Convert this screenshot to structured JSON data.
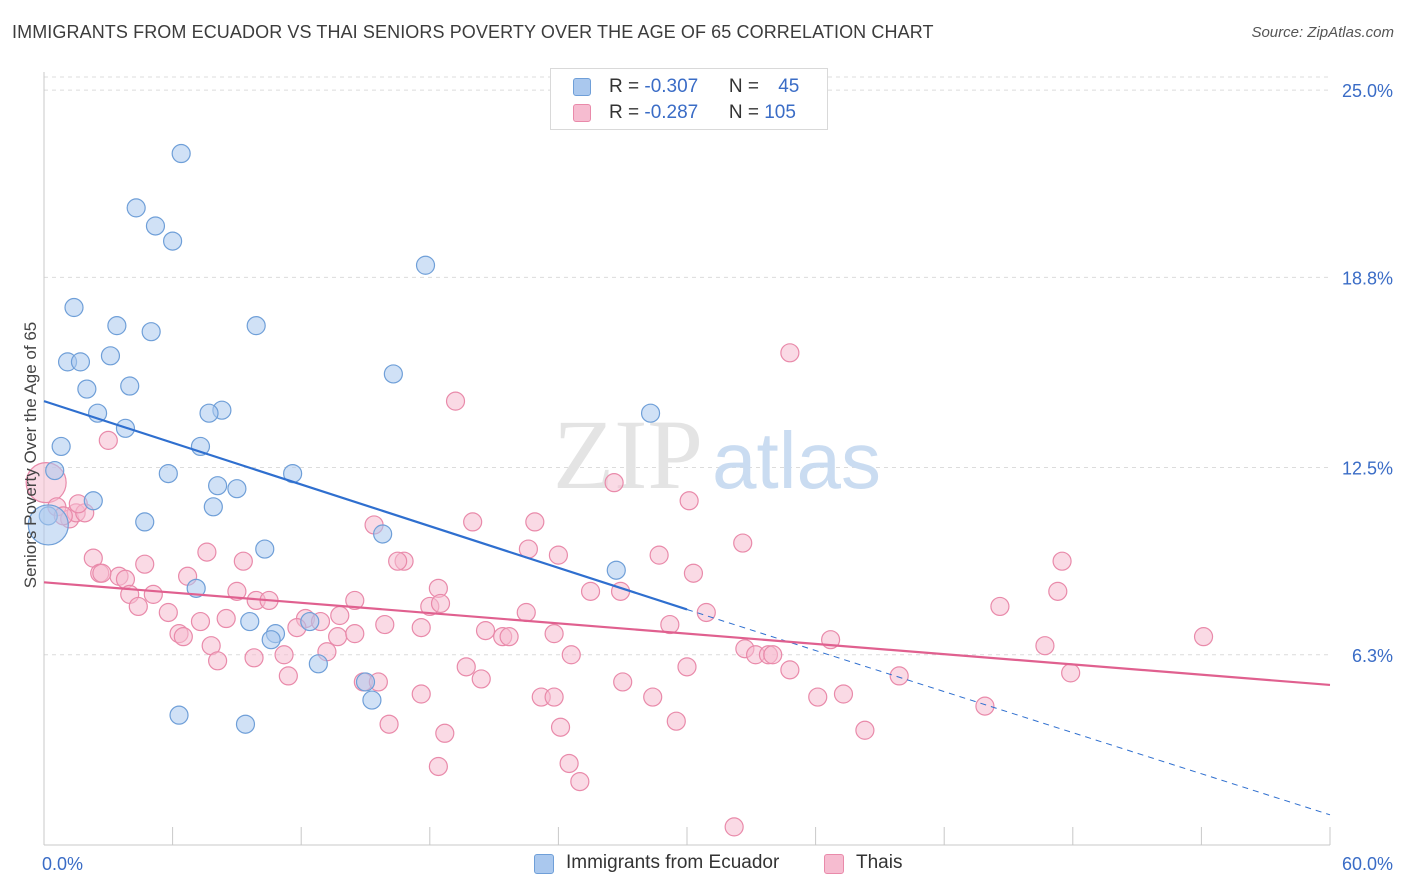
{
  "title": "IMMIGRANTS FROM ECUADOR VS THAI SENIORS POVERTY OVER THE AGE OF 65 CORRELATION CHART",
  "source": "Source: ZipAtlas.com",
  "watermark": {
    "zip": "ZIP",
    "atlas": "atlas"
  },
  "legend": {
    "rows": [
      {
        "r_label": "R = ",
        "r_value": "-0.307",
        "n_label": "N = ",
        "n_value": "45"
      },
      {
        "r_label": "R = ",
        "r_value": "-0.287",
        "n_label": "N = ",
        "n_value": "105"
      }
    ]
  },
  "colors": {
    "blue_fill": "#aac8ee",
    "blue_stroke": "#6f9fd8",
    "blue_line": "#2f6fcf",
    "pink_fill": "#f6bcd0",
    "pink_stroke": "#e98aaa",
    "pink_line": "#e0608f",
    "grid": "#dcdcdc",
    "tick_label": "#3a6cc6"
  },
  "chart_data": {
    "type": "scatter",
    "title": "IMMIGRANTS FROM ECUADOR VS THAI SENIORS POVERTY OVER THE AGE OF 65 CORRELATION CHART",
    "xlabel": "",
    "ylabel": "Seniors Poverty Over the Age of 65",
    "xlim": [
      0,
      60
    ],
    "ylim": [
      0,
      25.6
    ],
    "x_tick_labels": [
      "0.0%",
      "60.0%"
    ],
    "y_ticks": [
      6.3,
      12.5,
      18.8,
      25.0
    ],
    "y_tick_labels": [
      "6.3%",
      "12.5%",
      "18.8%",
      "25.0%"
    ],
    "grid": true,
    "legend_position": "top-center",
    "series": [
      {
        "name": "Immigrants from Ecuador",
        "r": -0.307,
        "n": 45,
        "trend": {
          "x0": 0,
          "y0": 14.7,
          "x1": 30,
          "y1": 7.8,
          "dashed_to_x": 60,
          "dashed_to_y": 1.0
        },
        "points": [
          [
            6.4,
            22.9
          ],
          [
            4.3,
            21.1
          ],
          [
            5.2,
            20.5
          ],
          [
            6.0,
            20.0
          ],
          [
            17.8,
            19.2
          ],
          [
            1.4,
            17.8
          ],
          [
            3.4,
            17.2
          ],
          [
            5.0,
            17.0
          ],
          [
            9.9,
            17.2
          ],
          [
            1.1,
            16.0
          ],
          [
            1.7,
            16.0
          ],
          [
            3.1,
            16.2
          ],
          [
            16.3,
            15.6
          ],
          [
            2.0,
            15.1
          ],
          [
            4.0,
            15.2
          ],
          [
            8.3,
            14.4
          ],
          [
            7.7,
            14.3
          ],
          [
            2.5,
            14.3
          ],
          [
            28.3,
            14.3
          ],
          [
            3.8,
            13.8
          ],
          [
            0.8,
            13.2
          ],
          [
            7.3,
            13.2
          ],
          [
            0.5,
            12.4
          ],
          [
            5.8,
            12.3
          ],
          [
            11.6,
            12.3
          ],
          [
            9.0,
            11.8
          ],
          [
            8.1,
            11.9
          ],
          [
            2.3,
            11.4
          ],
          [
            7.9,
            11.2
          ],
          [
            4.7,
            10.7
          ],
          [
            0.2,
            10.9
          ],
          [
            15.8,
            10.3
          ],
          [
            10.3,
            9.8
          ],
          [
            26.7,
            9.1
          ],
          [
            7.1,
            8.5
          ],
          [
            9.6,
            7.4
          ],
          [
            12.4,
            7.4
          ],
          [
            10.8,
            7.0
          ],
          [
            10.6,
            6.8
          ],
          [
            12.8,
            6.0
          ],
          [
            15.0,
            5.4
          ],
          [
            15.3,
            4.8
          ],
          [
            6.3,
            4.3
          ],
          [
            9.4,
            4.0
          ],
          [
            0.2,
            10.6
          ]
        ]
      },
      {
        "name": "Thais",
        "r": -0.287,
        "n": 105,
        "trend": {
          "x0": 0,
          "y0": 8.7,
          "x1": 60,
          "y1": 5.3
        },
        "points": [
          [
            0.1,
            12.0
          ],
          [
            0.6,
            11.2
          ],
          [
            1.2,
            10.8
          ],
          [
            1.5,
            11.0
          ],
          [
            1.9,
            11.0
          ],
          [
            1.6,
            11.3
          ],
          [
            3.0,
            13.4
          ],
          [
            34.8,
            16.3
          ],
          [
            19.2,
            14.7
          ],
          [
            26.6,
            12.0
          ],
          [
            30.1,
            11.4
          ],
          [
            20.0,
            10.7
          ],
          [
            22.9,
            10.7
          ],
          [
            15.4,
            10.6
          ],
          [
            32.6,
            10.0
          ],
          [
            22.6,
            9.8
          ],
          [
            2.3,
            9.5
          ],
          [
            4.7,
            9.3
          ],
          [
            7.6,
            9.7
          ],
          [
            9.3,
            9.4
          ],
          [
            16.8,
            9.4
          ],
          [
            16.5,
            9.4
          ],
          [
            24.0,
            9.6
          ],
          [
            28.7,
            9.6
          ],
          [
            47.5,
            9.4
          ],
          [
            2.6,
            9.0
          ],
          [
            3.5,
            8.9
          ],
          [
            3.8,
            8.8
          ],
          [
            6.7,
            8.9
          ],
          [
            30.3,
            9.0
          ],
          [
            4.0,
            8.3
          ],
          [
            5.1,
            8.3
          ],
          [
            9.0,
            8.4
          ],
          [
            9.9,
            8.1
          ],
          [
            10.5,
            8.1
          ],
          [
            14.5,
            8.1
          ],
          [
            18.4,
            8.5
          ],
          [
            25.5,
            8.4
          ],
          [
            26.9,
            8.4
          ],
          [
            47.3,
            8.4
          ],
          [
            4.4,
            7.9
          ],
          [
            5.8,
            7.7
          ],
          [
            8.5,
            7.5
          ],
          [
            12.2,
            7.5
          ],
          [
            13.8,
            7.6
          ],
          [
            15.9,
            7.3
          ],
          [
            18.0,
            7.9
          ],
          [
            22.5,
            7.7
          ],
          [
            30.9,
            7.7
          ],
          [
            44.6,
            7.9
          ],
          [
            7.3,
            7.4
          ],
          [
            11.8,
            7.2
          ],
          [
            17.6,
            7.2
          ],
          [
            20.6,
            7.1
          ],
          [
            29.2,
            7.3
          ],
          [
            6.3,
            7.0
          ],
          [
            6.5,
            6.9
          ],
          [
            13.7,
            6.9
          ],
          [
            14.5,
            7.0
          ],
          [
            21.4,
            6.9
          ],
          [
            21.7,
            6.9
          ],
          [
            36.7,
            6.8
          ],
          [
            54.1,
            6.9
          ],
          [
            7.8,
            6.6
          ],
          [
            32.7,
            6.5
          ],
          [
            46.7,
            6.6
          ],
          [
            8.1,
            6.1
          ],
          [
            9.8,
            6.2
          ],
          [
            11.2,
            6.3
          ],
          [
            13.2,
            6.4
          ],
          [
            24.6,
            6.3
          ],
          [
            33.2,
            6.3
          ],
          [
            33.8,
            6.3
          ],
          [
            34.0,
            6.3
          ],
          [
            19.7,
            5.9
          ],
          [
            30.0,
            5.9
          ],
          [
            34.8,
            5.8
          ],
          [
            11.4,
            5.6
          ],
          [
            14.9,
            5.4
          ],
          [
            15.6,
            5.4
          ],
          [
            20.4,
            5.5
          ],
          [
            27.0,
            5.4
          ],
          [
            39.9,
            5.6
          ],
          [
            47.9,
            5.7
          ],
          [
            17.6,
            5.0
          ],
          [
            23.2,
            4.9
          ],
          [
            23.8,
            4.9
          ],
          [
            28.4,
            4.9
          ],
          [
            36.1,
            4.9
          ],
          [
            37.3,
            5.0
          ],
          [
            43.9,
            4.6
          ],
          [
            16.1,
            4.0
          ],
          [
            24.1,
            3.9
          ],
          [
            29.5,
            4.1
          ],
          [
            38.3,
            3.8
          ],
          [
            18.7,
            3.7
          ],
          [
            18.4,
            2.6
          ],
          [
            24.5,
            2.7
          ],
          [
            25.0,
            2.1
          ],
          [
            32.2,
            0.6
          ],
          [
            0.9,
            10.9
          ],
          [
            2.7,
            9.0
          ],
          [
            12.9,
            7.4
          ],
          [
            18.5,
            8.0
          ],
          [
            23.8,
            7.0
          ]
        ]
      }
    ]
  }
}
